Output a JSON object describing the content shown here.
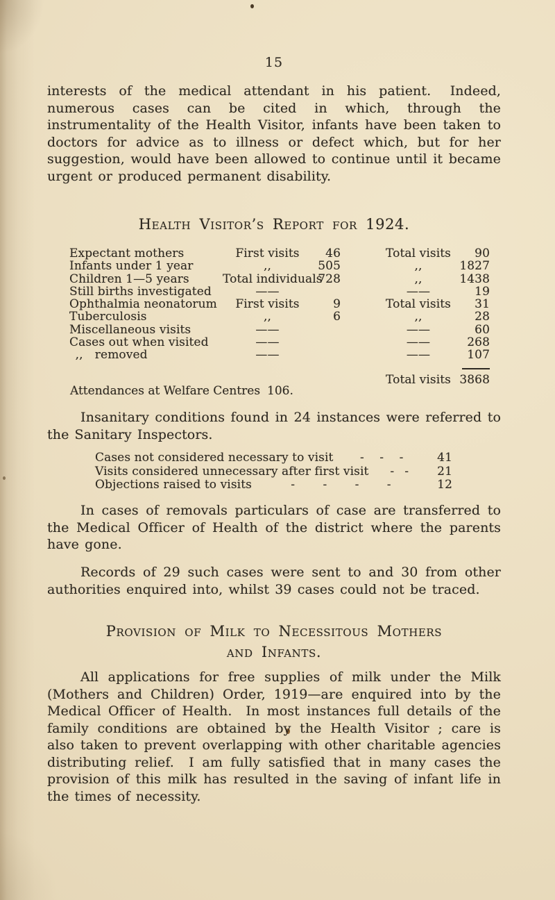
{
  "page_number": "15",
  "colors": {
    "paper": "#ecdfc2",
    "paper_edge_shadow": "#c9b48e",
    "ink": "#2f2a22"
  },
  "paragraphs": {
    "intro": "interests of the medical attendant in his patient.  Indeed, numerous cases can be cited in which, through the instrumentality of the Health Visitor, infants have been taken to doctors for advice as to illness or defect which, but for her suggestion, would have been allowed to continue until it became urgent or produced permanent disability.",
    "insanitary": "Insanitary conditions found in 24 instances were referred to the Sanitary Inspectors.",
    "removals": "In cases of removals particulars of case are transferred to the Medical Officer of Health of the district where the parents have gone.",
    "records": "Records of 29 such cases were sent to and 30 from other authorities enquired into, whilst 39 cases could not be traced."
  },
  "report": {
    "heading": "Health Visitor’s Report for 1924.",
    "rows": [
      {
        "label": "Expectant mothers",
        "type": "First visits",
        "first": "46",
        "total_label": "Total visits",
        "total": "90"
      },
      {
        "label": "Infants under 1 year",
        "type": ",,",
        "first": "505",
        "total_label": ",,",
        "total": "1827"
      },
      {
        "label": "Children 1—5 years",
        "type": "Total individuals",
        "first": "728",
        "total_label": ",,",
        "total": "1438"
      },
      {
        "label": "Still births investigated",
        "type": "——",
        "first": "",
        "total_label": "——",
        "total": "19"
      },
      {
        "label": "Ophthalmia neonatorum",
        "type": "First visits",
        "first": "9",
        "total_label": "Total visits",
        "total": "31"
      },
      {
        "label": "Tuberculosis",
        "type": ",,",
        "first": "6",
        "total_label": ",,",
        "total": "28"
      },
      {
        "label": "Miscellaneous visits",
        "type": "——",
        "first": "",
        "total_label": "——",
        "total": "60"
      },
      {
        "label": "Cases out when visited",
        "type": "——",
        "first": "",
        "total_label": "——",
        "total": "268"
      },
      {
        "label": " ,,  removed",
        "type": "——",
        "first": "",
        "total_label": "——",
        "total": "107"
      }
    ],
    "grand_total_label": "Total visits",
    "grand_total": "3868",
    "attendances_label": "Attendances at Welfare Centres",
    "attendances_value": "106."
  },
  "referrals": {
    "rows": [
      {
        "label": "Cases not considered necessary to visit",
        "dashes": [
          "-",
          "-",
          "-"
        ],
        "value": "41"
      },
      {
        "label": "Visits considered unnecessary after first visit",
        "dashes": [
          "-",
          "-"
        ],
        "value": "21"
      },
      {
        "label": "Objections raised to visits",
        "dashes": [
          "-",
          "-",
          "-",
          "-"
        ],
        "value": "12"
      }
    ]
  },
  "milk": {
    "heading_line1": "Provision of Milk to Necessitous Mothers",
    "heading_line2": "and Infants.",
    "body": "All applications for free supplies of milk under the Milk (Mothers and Children) Order, 1919—are enquired into by the Medical Officer of Health.  In most instances full details of the family conditions are obtained by the Health Visitor ; care is also taken to prevent overlapping with other charitable agencies distributing relief.  I am fully satisfied that in many cases the provision of this milk has resulted in the saving of infant life in the times of necessity."
  }
}
